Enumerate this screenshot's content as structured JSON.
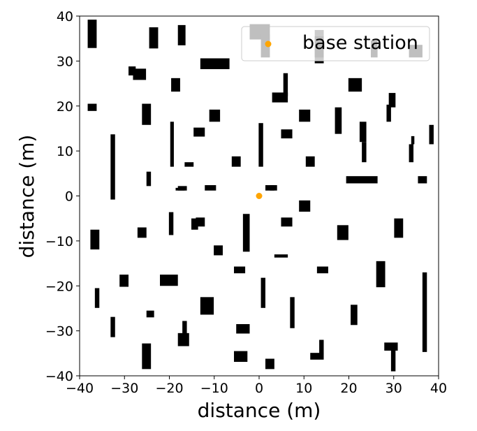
{
  "chart_data": {
    "type": "scatter",
    "xlabel": "distance (m)",
    "ylabel": "distance (m)",
    "xlim": [
      -40,
      40
    ],
    "ylim": [
      -40,
      40
    ],
    "xticks": [
      -40,
      -30,
      -20,
      -10,
      0,
      10,
      20,
      30,
      40
    ],
    "yticks": [
      -40,
      -30,
      -20,
      -10,
      0,
      10,
      20,
      30,
      40
    ],
    "grid": false,
    "legend_position": "top-right",
    "series": [
      {
        "name": "base station",
        "x": [
          0
        ],
        "y": [
          0
        ],
        "color": "#ffa500"
      }
    ],
    "obstacle_color": "#000000",
    "obstacles": [
      [
        -38.2,
        32.9,
        -36.2,
        39.2
      ],
      [
        -38.2,
        18.9,
        -36.2,
        20.5
      ],
      [
        -24.5,
        32.8,
        -22.5,
        37.5
      ],
      [
        -18.1,
        33.5,
        -16.4,
        38.0
      ],
      [
        -29.1,
        26.8,
        -27.5,
        28.8
      ],
      [
        -28.1,
        25.8,
        -25.2,
        28.3
      ],
      [
        -19.6,
        23.2,
        -17.6,
        26.2
      ],
      [
        -13.1,
        28.2,
        -6.6,
        30.6
      ],
      [
        -26.1,
        15.8,
        -24.1,
        20.5
      ],
      [
        -19.8,
        6.5,
        -19.0,
        16.5
      ],
      [
        -14.6,
        13.2,
        -12.1,
        15.2
      ],
      [
        -11.1,
        16.5,
        -8.7,
        19.2
      ],
      [
        -33.1,
        -0.8,
        -32.1,
        13.7
      ],
      [
        -25.1,
        2.2,
        -24.1,
        5.4
      ],
      [
        -16.6,
        6.5,
        -14.6,
        7.5
      ],
      [
        -18.1,
        1.2,
        -16.1,
        2.2
      ],
      [
        -18.6,
        1.2,
        -16.6,
        1.8
      ],
      [
        -12.1,
        1.2,
        -9.6,
        2.4
      ],
      [
        -6.1,
        6.5,
        -4.1,
        8.8
      ],
      [
        -0.1,
        6.5,
        0.9,
        16.2
      ],
      [
        2.9,
        20.8,
        6.4,
        23.0
      ],
      [
        5.4,
        22.2,
        6.4,
        27.3
      ],
      [
        4.9,
        12.8,
        7.4,
        14.8
      ],
      [
        8.9,
        16.5,
        11.4,
        19.2
      ],
      [
        10.4,
        6.5,
        12.4,
        8.8
      ],
      [
        12.4,
        29.5,
        14.4,
        36.9
      ],
      [
        19.9,
        23.2,
        22.9,
        26.2
      ],
      [
        16.9,
        13.8,
        18.4,
        19.7
      ],
      [
        22.4,
        12.0,
        23.9,
        16.5
      ],
      [
        22.9,
        7.5,
        23.9,
        12.0
      ],
      [
        28.4,
        16.5,
        29.4,
        20.3
      ],
      [
        28.9,
        19.7,
        30.4,
        22.9
      ],
      [
        33.4,
        7.5,
        34.4,
        11.5
      ],
      [
        33.9,
        11.5,
        34.6,
        13.3
      ],
      [
        37.9,
        11.5,
        38.9,
        15.8
      ],
      [
        19.4,
        2.8,
        26.4,
        4.4
      ],
      [
        35.4,
        2.8,
        37.4,
        4.4
      ],
      [
        -37.6,
        -11.9,
        -35.6,
        -7.5
      ],
      [
        -27.1,
        -9.3,
        -25.1,
        -7.0
      ],
      [
        -20.1,
        -8.7,
        -19.1,
        -3.6
      ],
      [
        -15.1,
        -7.5,
        -13.6,
        -5.0
      ],
      [
        -14.1,
        -6.8,
        -12.1,
        -4.8
      ],
      [
        -10.1,
        -13.2,
        -8.1,
        -11.0
      ],
      [
        -3.6,
        -12.4,
        -2.1,
        -4.0
      ],
      [
        1.4,
        1.2,
        3.4,
        2.4
      ],
      [
        2.4,
        1.2,
        4.0,
        2.4
      ],
      [
        4.9,
        -6.8,
        7.4,
        -4.8
      ],
      [
        8.9,
        -3.5,
        11.4,
        -1.0
      ],
      [
        3.4,
        -13.7,
        6.4,
        -13.0
      ],
      [
        17.4,
        -9.8,
        19.9,
        -6.5
      ],
      [
        30.1,
        -9.3,
        32.1,
        -5.0
      ],
      [
        26.1,
        -20.3,
        28.1,
        -14.5
      ],
      [
        12.9,
        -17.2,
        15.4,
        -15.7
      ],
      [
        -5.6,
        -17.2,
        -3.1,
        -15.7
      ],
      [
        -31.1,
        -20.2,
        -29.1,
        -17.5
      ],
      [
        -22.1,
        -20.0,
        -18.1,
        -17.5
      ],
      [
        0.4,
        -24.9,
        1.4,
        -18.2
      ],
      [
        -36.6,
        -24.9,
        -35.6,
        -20.5
      ],
      [
        -25.1,
        -27.0,
        -23.4,
        -25.5
      ],
      [
        -13.1,
        -26.4,
        -10.1,
        -22.5
      ],
      [
        6.9,
        -29.4,
        7.9,
        -22.5
      ],
      [
        20.4,
        -28.7,
        21.9,
        -24.2
      ],
      [
        -33.1,
        -31.4,
        -32.1,
        -26.9
      ],
      [
        -18.1,
        -33.4,
        -15.6,
        -30.5
      ],
      [
        -17.1,
        -31.4,
        -16.1,
        -27.8
      ],
      [
        -5.1,
        -30.6,
        -2.1,
        -28.5
      ],
      [
        -5.6,
        -36.9,
        -2.6,
        -34.5
      ],
      [
        -26.1,
        -38.5,
        -24.1,
        -32.8
      ],
      [
        1.4,
        -38.5,
        3.4,
        -36.2
      ],
      [
        11.4,
        -36.4,
        14.4,
        -34.9
      ],
      [
        13.4,
        -35.2,
        14.4,
        -32.0
      ],
      [
        36.4,
        -34.7,
        37.4,
        -17.0
      ],
      [
        27.9,
        -34.4,
        30.9,
        -32.6
      ],
      [
        29.4,
        -39.0,
        30.4,
        -34.0
      ]
    ],
    "legend_overlap_obstacles": [
      [
        -2.1,
        34.8,
        2.4,
        38.2
      ],
      [
        0.4,
        30.8,
        2.4,
        36.0
      ],
      [
        12.4,
        30.8,
        14.4,
        35.5
      ],
      [
        24.9,
        30.8,
        26.4,
        34.6
      ],
      [
        33.4,
        30.8,
        36.4,
        33.6
      ]
    ],
    "legend_overlap_color": "#bfbfbf"
  }
}
